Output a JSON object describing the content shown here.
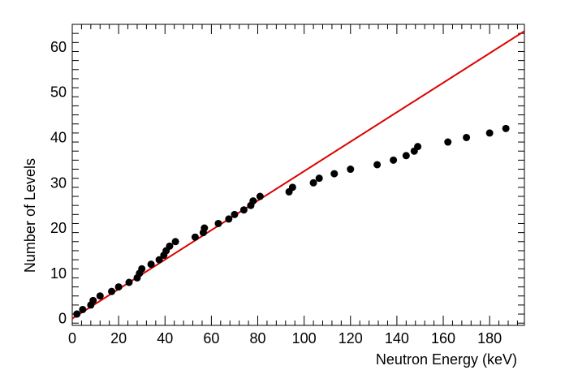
{
  "chart_data": {
    "type": "scatter",
    "title": "",
    "xlabel": "Neutron Energy (keV)",
    "ylabel": "Number of Levels",
    "xlim": [
      0,
      195
    ],
    "ylim": [
      -1.5,
      65
    ],
    "x_ticks": [
      "0",
      "20",
      "40",
      "60",
      "80",
      "100",
      "120",
      "140",
      "160",
      "180"
    ],
    "y_ticks": [
      "0",
      "10",
      "20",
      "30",
      "40",
      "50",
      "60"
    ],
    "grid": false,
    "legend": "none",
    "series": [
      {
        "type": "scatter",
        "color": "#000000",
        "points": [
          [
            2,
            1
          ],
          [
            4.5,
            2
          ],
          [
            8,
            3
          ],
          [
            9,
            4
          ],
          [
            12,
            5
          ],
          [
            17,
            6
          ],
          [
            20,
            7
          ],
          [
            24.5,
            8
          ],
          [
            28,
            9
          ],
          [
            29,
            10
          ],
          [
            30,
            11
          ],
          [
            34,
            12
          ],
          [
            37.5,
            13
          ],
          [
            39.5,
            14
          ],
          [
            40.5,
            15
          ],
          [
            42,
            16
          ],
          [
            44.5,
            17
          ],
          [
            53,
            18
          ],
          [
            56.5,
            19
          ],
          [
            57,
            20
          ],
          [
            63,
            21
          ],
          [
            67.5,
            22
          ],
          [
            70,
            23
          ],
          [
            74,
            24
          ],
          [
            77,
            25
          ],
          [
            78,
            26
          ],
          [
            81,
            27
          ],
          [
            93.5,
            28
          ],
          [
            95,
            29
          ],
          [
            104,
            30
          ],
          [
            106.5,
            31
          ],
          [
            113,
            32
          ],
          [
            120,
            33
          ],
          [
            131.5,
            34
          ],
          [
            138.5,
            35
          ],
          [
            144,
            36
          ],
          [
            147.5,
            37
          ],
          [
            149,
            38
          ],
          [
            162,
            39
          ],
          [
            170,
            40
          ],
          [
            180,
            41
          ],
          [
            187,
            42
          ]
        ]
      },
      {
        "type": "line",
        "color": "#dd0000",
        "points": [
          [
            0,
            0
          ],
          [
            195,
            63.5
          ]
        ]
      }
    ]
  }
}
